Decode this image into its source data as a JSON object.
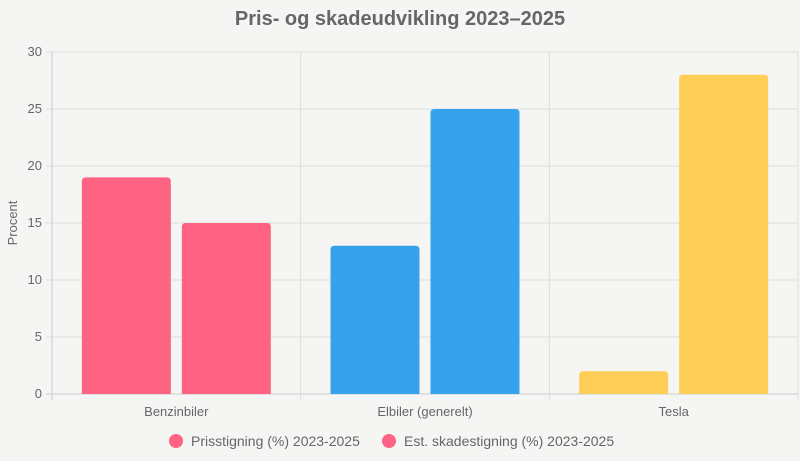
{
  "chart_data": {
    "type": "bar",
    "title": "Pris- og skadeudvikling 2023–2025",
    "xlabel": "",
    "ylabel": "Procent",
    "ylim": [
      0,
      30
    ],
    "yticks": [
      0,
      5,
      10,
      15,
      20,
      25,
      30
    ],
    "grid": true,
    "legend_position": "bottom",
    "categories": [
      "Benzinbiler",
      "Elbiler (generelt)",
      "Tesla"
    ],
    "category_colors": [
      "#ff6384",
      "#36a2eb",
      "#ffce56"
    ],
    "series": [
      {
        "name": "Prisstigning (%) 2023-2025",
        "values": [
          19,
          13,
          2
        ]
      },
      {
        "name": "Est. skadestigning (%) 2023-2025",
        "values": [
          15,
          25,
          28
        ]
      }
    ]
  },
  "colors": {
    "grid": "#dddddd",
    "axis": "#cccccc",
    "text": "#666666"
  }
}
